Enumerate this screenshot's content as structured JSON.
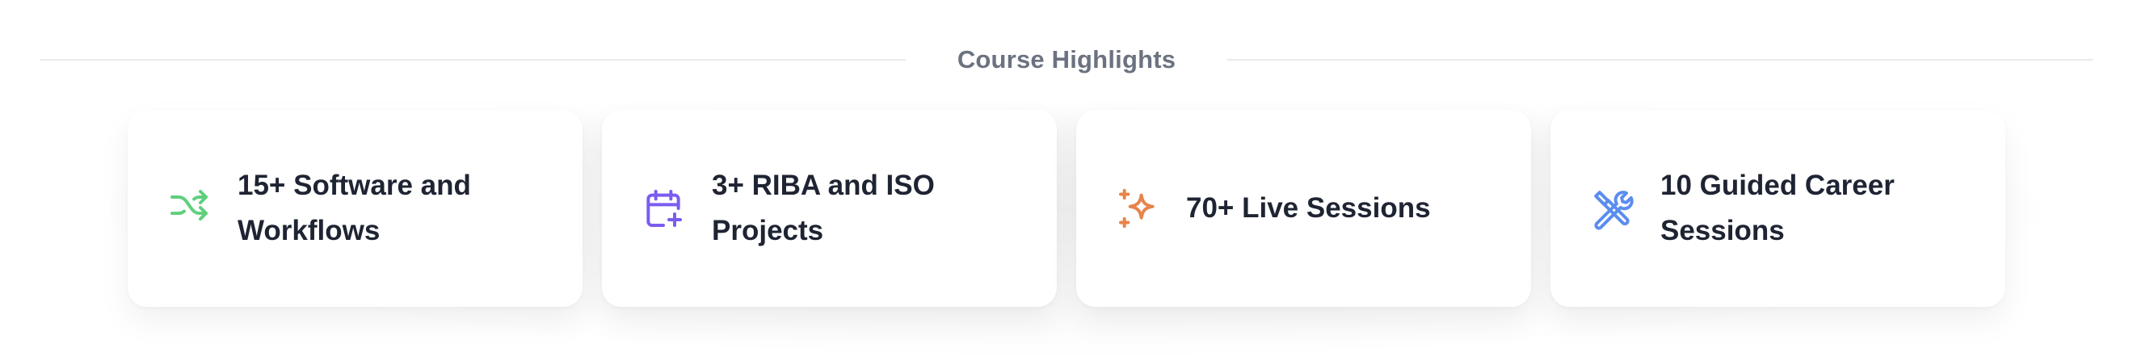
{
  "section": {
    "heading": "Course Highlights"
  },
  "highlights": [
    {
      "label": "15+ Software and Workflows",
      "icon": "shuffle-icon",
      "color": "#5fcf7d"
    },
    {
      "label": "3+ RIBA and ISO Projects",
      "icon": "calendar-plus-icon",
      "color": "#7b5cf0"
    },
    {
      "label": "70+ Live Sessions",
      "icon": "sparkles-icon",
      "color": "#e6844a"
    },
    {
      "label": "10 Guided Career Sessions",
      "icon": "tools-icon",
      "color": "#5b8def"
    }
  ]
}
